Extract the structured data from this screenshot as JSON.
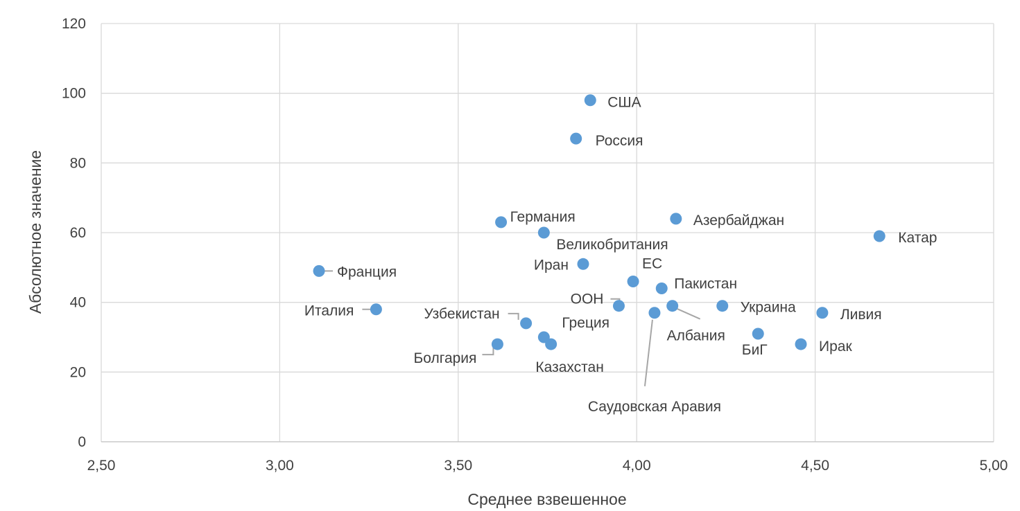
{
  "chart_data": {
    "type": "scatter",
    "xlabel": "Среднее взвешенное",
    "ylabel": "Абсолютное значение",
    "xlim": [
      2.5,
      5.0
    ],
    "ylim": [
      0,
      120
    ],
    "x_ticks": [
      "2,50",
      "3,00",
      "3,50",
      "4,00",
      "4,50",
      "5,00"
    ],
    "y_ticks": [
      "0",
      "20",
      "40",
      "60",
      "80",
      "100",
      "120"
    ],
    "grid": true,
    "marker_color": "#5b9bd5",
    "points": [
      {
        "label": "США",
        "x": 3.87,
        "y": 98
      },
      {
        "label": "Россия",
        "x": 3.83,
        "y": 87
      },
      {
        "label": "Германия",
        "x": 3.62,
        "y": 63
      },
      {
        "label": "Великобритания",
        "x": 3.74,
        "y": 60
      },
      {
        "label": "Азербайджан",
        "x": 4.11,
        "y": 64
      },
      {
        "label": "Катар",
        "x": 4.68,
        "y": 59
      },
      {
        "label": "Франция",
        "x": 3.11,
        "y": 49
      },
      {
        "label": "Иран",
        "x": 3.85,
        "y": 51
      },
      {
        "label": "ЕС",
        "x": 3.99,
        "y": 46
      },
      {
        "label": "Пакистан",
        "x": 4.07,
        "y": 44
      },
      {
        "label": "Италия",
        "x": 3.27,
        "y": 38
      },
      {
        "label": "ООН",
        "x": 3.95,
        "y": 39
      },
      {
        "label": "Албания",
        "x": 4.1,
        "y": 39
      },
      {
        "label": "Украина",
        "x": 4.24,
        "y": 39
      },
      {
        "label": "Ливия",
        "x": 4.52,
        "y": 37
      },
      {
        "label": "Саудовская Аравия",
        "x": 4.05,
        "y": 37
      },
      {
        "label": "Узбекистан",
        "x": 3.69,
        "y": 34
      },
      {
        "label": "Греция",
        "x": 3.74,
        "y": 30
      },
      {
        "label": "Казахстан",
        "x": 3.76,
        "y": 28
      },
      {
        "label": "Болгария",
        "x": 3.61,
        "y": 28
      },
      {
        "label": "БиГ",
        "x": 4.34,
        "y": 31
      },
      {
        "label": "Ирак",
        "x": 4.46,
        "y": 28
      }
    ]
  }
}
